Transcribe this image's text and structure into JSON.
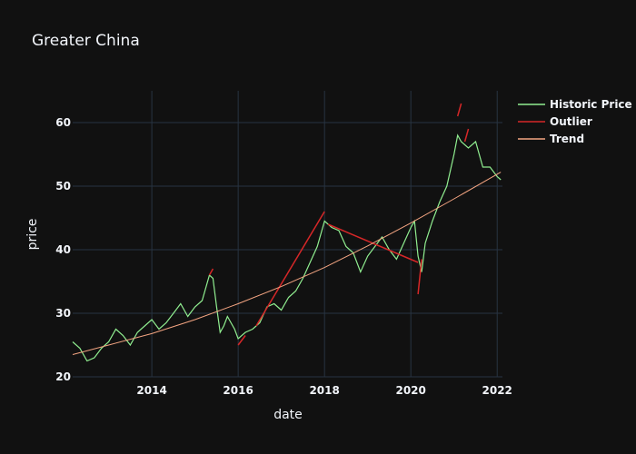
{
  "colors": {
    "background": "#111111",
    "grid": "#283442",
    "text": "#f2f5fa"
  },
  "chart_data": {
    "type": "line",
    "title": "Greater China",
    "xlabel": "date",
    "ylabel": "price",
    "xlim": [
      "2012-03-01",
      "2022-02-15"
    ],
    "ylim": [
      20,
      65
    ],
    "x_ticks": [
      "2014",
      "2016",
      "2018",
      "2020",
      "2022"
    ],
    "y_ticks": [
      20,
      30,
      40,
      50,
      60
    ],
    "grid": true,
    "legend_position": "top-right",
    "series": [
      {
        "name": "Historic Price",
        "color": "#90ee90",
        "x": [
          "2012-03",
          "2012-05",
          "2012-07",
          "2012-09",
          "2012-11",
          "2013-01",
          "2013-03",
          "2013-05",
          "2013-07",
          "2013-09",
          "2013-11",
          "2014-01",
          "2014-03",
          "2014-05",
          "2014-07",
          "2014-09",
          "2014-11",
          "2015-01",
          "2015-03",
          "2015-05",
          "2015-06",
          "2015-07",
          "2015-08",
          "2015-09",
          "2015-10",
          "2015-12",
          "2016-01",
          "2016-03",
          "2016-05",
          "2016-07",
          "2016-09",
          "2016-11",
          "2017-01",
          "2017-03",
          "2017-05",
          "2017-07",
          "2017-09",
          "2017-11",
          "2018-01",
          "2018-03",
          "2018-05",
          "2018-07",
          "2018-09",
          "2018-11",
          "2019-01",
          "2019-03",
          "2019-05",
          "2019-07",
          "2019-09",
          "2019-11",
          "2020-01",
          "2020-02",
          "2020-03",
          "2020-04",
          "2020-05",
          "2020-07",
          "2020-09",
          "2020-11",
          "2021-01",
          "2021-02",
          "2021-03",
          "2021-05",
          "2021-07",
          "2021-09",
          "2021-11",
          "2022-01",
          "2022-02"
        ],
        "values": [
          25.5,
          24.5,
          22.5,
          23.0,
          24.5,
          25.5,
          27.5,
          26.5,
          25.0,
          27.0,
          28.0,
          29.0,
          27.5,
          28.5,
          30.0,
          31.5,
          29.5,
          31.0,
          32.0,
          36.0,
          35.5,
          31.0,
          27.0,
          28.0,
          29.5,
          27.5,
          26.0,
          27.0,
          27.5,
          28.5,
          31.0,
          31.5,
          30.5,
          32.5,
          33.5,
          35.5,
          38.0,
          40.5,
          44.5,
          43.5,
          43.0,
          40.5,
          39.5,
          36.5,
          39.0,
          40.5,
          42.0,
          40.0,
          38.5,
          41.0,
          43.5,
          44.5,
          39.0,
          36.5,
          41.0,
          44.5,
          47.5,
          50.0,
          55.0,
          58.0,
          57.0,
          56.0,
          57.0,
          53.0,
          53.0,
          51.5,
          51.0
        ]
      },
      {
        "name": "Outlier",
        "color": "#d62728",
        "x": [
          "2015-05",
          "2015-06",
          "2016-01",
          "2016-03",
          "2016-06",
          "2018-01",
          "2018-02",
          "2020-03",
          "2020-03",
          "2020-04",
          "2021-02",
          "2021-03",
          "2021-04",
          "2021-05"
        ],
        "values": [
          36.0,
          37.0,
          25.0,
          26.5,
          28.0,
          46.0,
          44.0,
          38.0,
          33.0,
          38.5,
          61.0,
          63.0,
          57.0,
          59.0
        ]
      },
      {
        "name": "Trend",
        "color": "#f4a582",
        "x": [
          "2012-03",
          "2013-01",
          "2014-01",
          "2015-01",
          "2016-01",
          "2017-01",
          "2018-01",
          "2019-01",
          "2020-01",
          "2021-01",
          "2022-02"
        ],
        "values": [
          23.5,
          25.0,
          26.8,
          29.0,
          31.5,
          34.2,
          37.2,
          40.6,
          44.2,
          48.0,
          52.2
        ]
      }
    ]
  }
}
